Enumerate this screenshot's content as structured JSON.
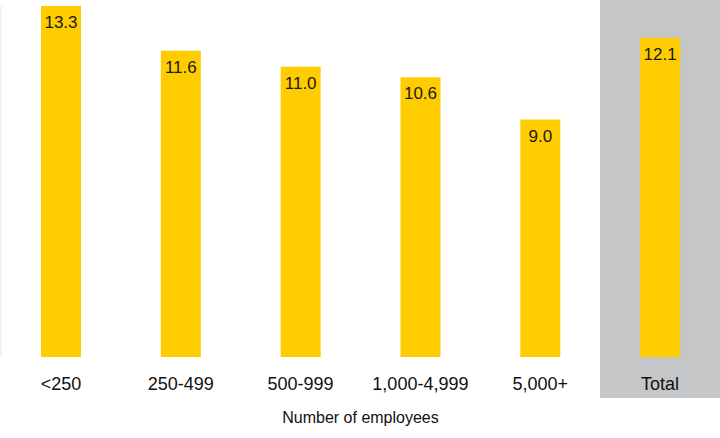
{
  "chart_data": {
    "type": "bar",
    "x_label": "Number of employees",
    "categories": [
      "<250",
      "250-499",
      "500-999",
      "1,000-4,999",
      "5,000+",
      "Total"
    ],
    "values": [
      13.3,
      11.6,
      11.0,
      10.6,
      9.0,
      12.1
    ],
    "value_labels": [
      "13.3",
      "11.6",
      "11.0",
      "10.6",
      "9.0",
      "12.1"
    ],
    "color": "#ffcc00",
    "ylim": [
      0,
      13.3
    ],
    "data_labels": true,
    "tick_labels": "x",
    "grid": false
  }
}
